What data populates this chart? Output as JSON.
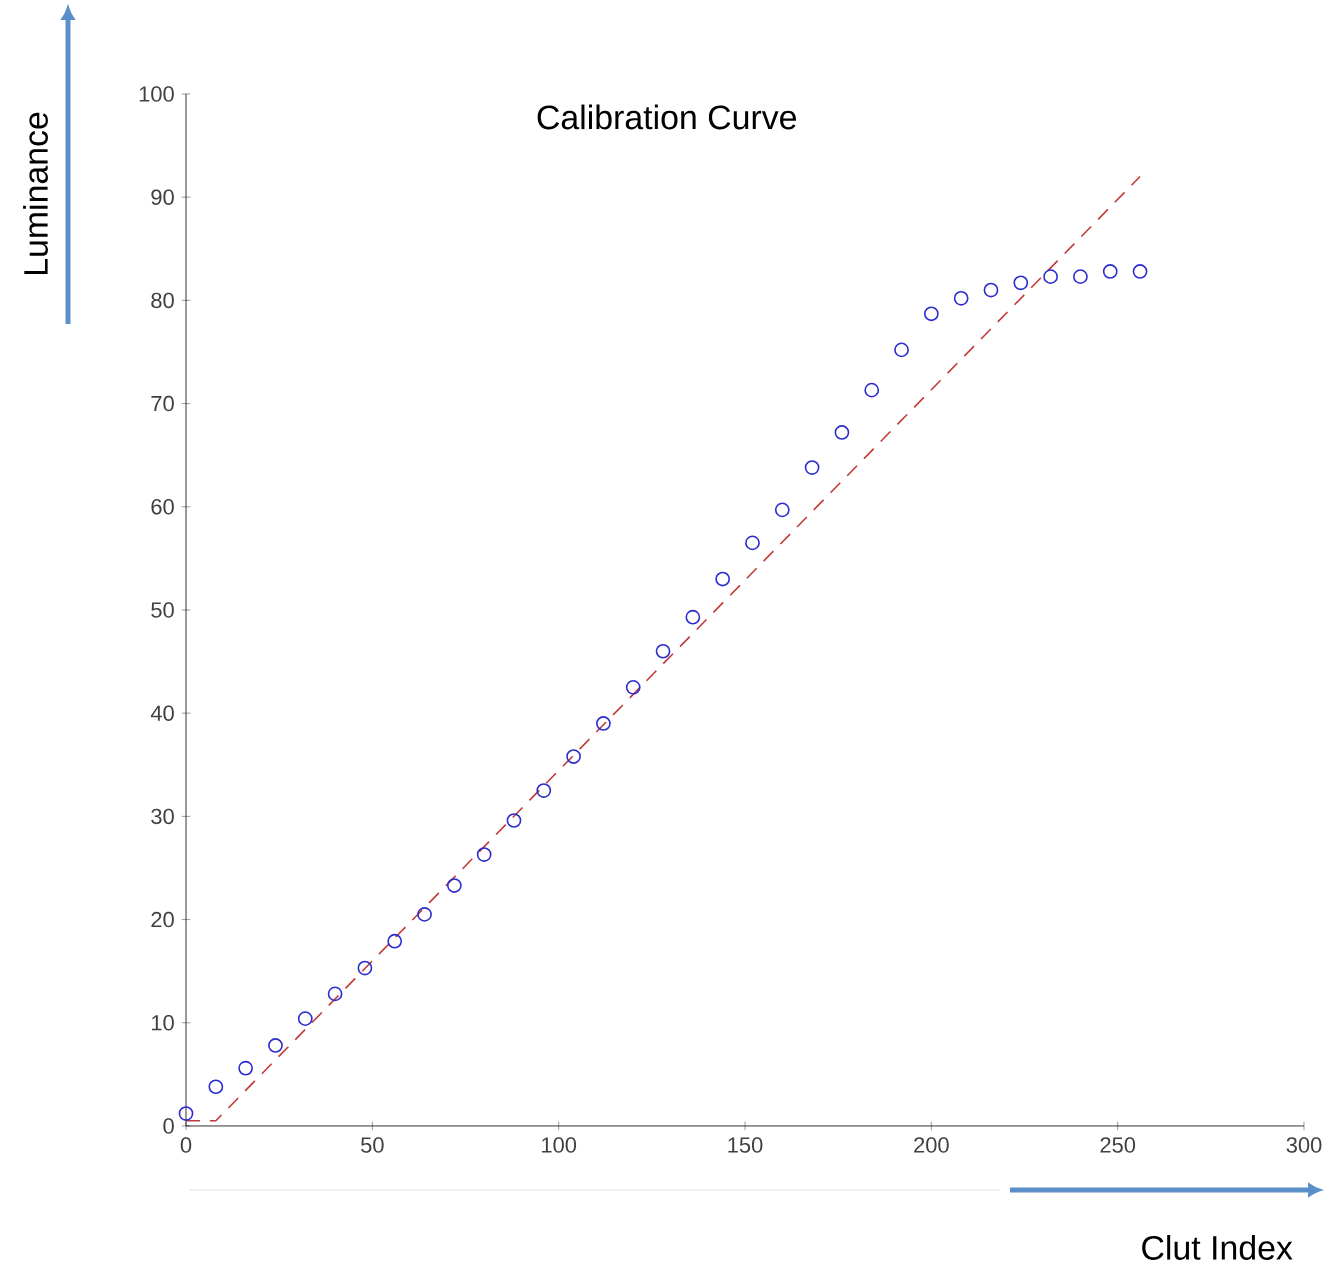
{
  "chart_data": {
    "type": "scatter",
    "title": "Calibration Curve",
    "xlabel": "Clut Index",
    "ylabel": "Luminance",
    "xlim": [
      0,
      300
    ],
    "ylim": [
      0,
      100
    ],
    "xticks": [
      0,
      50,
      100,
      150,
      200,
      250,
      300
    ],
    "yticks": [
      0,
      10,
      20,
      30,
      40,
      50,
      60,
      70,
      80,
      90,
      100
    ],
    "series": [
      {
        "type": "scatter",
        "color": "#2b2bd0",
        "marker": "circle",
        "x": [
          0,
          8,
          16,
          24,
          32,
          40,
          48,
          56,
          64,
          72,
          80,
          88,
          96,
          104,
          112,
          120,
          128,
          136,
          144,
          152,
          160,
          168,
          176,
          184,
          192,
          200,
          208,
          216,
          224,
          232,
          240,
          248,
          256
        ],
        "values": [
          1.2,
          3.8,
          5.6,
          7.8,
          10.4,
          12.8,
          15.3,
          17.9,
          20.5,
          23.3,
          26.3,
          29.6,
          32.5,
          35.8,
          39,
          42.5,
          46,
          49.3,
          53,
          56.5,
          59.7,
          63.8,
          67.2,
          71.3,
          75.2,
          78.7,
          80.2,
          81,
          81.7,
          82.3,
          82.3,
          82.8,
          82.8
        ]
      },
      {
        "type": "line",
        "color": "#c23a3a",
        "line_style": "dashed",
        "x": [
          0,
          8,
          256
        ],
        "values": [
          0.5,
          0.5,
          92
        ]
      }
    ]
  }
}
